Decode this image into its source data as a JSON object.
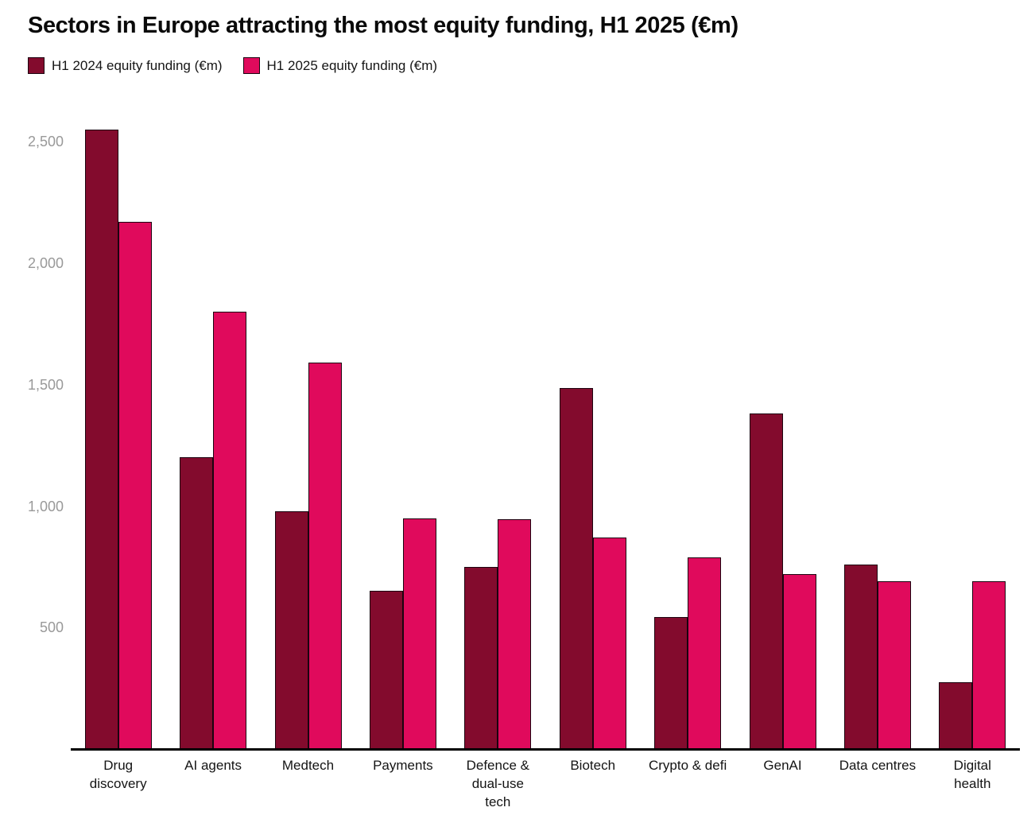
{
  "title": "Sectors in Europe attracting the most equity funding, H1 2025 (€m)",
  "chart_data": {
    "type": "bar",
    "title": "Sectors in Europe attracting the most equity funding, H1 2025 (€m)",
    "xlabel": "",
    "ylabel": "",
    "unit": "€m",
    "grid": false,
    "legend_position": "top-left",
    "ylim": [
      0,
      2600
    ],
    "yticks": [
      {
        "value": 500,
        "label": "500"
      },
      {
        "value": 1000,
        "label": "1,000"
      },
      {
        "value": 1500,
        "label": "1,500"
      },
      {
        "value": 2000,
        "label": "2,000"
      },
      {
        "value": 2500,
        "label": "2,500"
      }
    ],
    "categories": [
      "Drug discovery",
      "AI agents",
      "Medtech",
      "Payments",
      "Defence & dual-use tech",
      "Biotech",
      "Crypto & defi",
      "GenAI",
      "Data centres",
      "Digital health"
    ],
    "category_label_lines": [
      [
        "Drug",
        "discovery"
      ],
      [
        "AI agents"
      ],
      [
        "Medtech"
      ],
      [
        "Payments"
      ],
      [
        "Defence &",
        "dual-use",
        "tech"
      ],
      [
        "Biotech"
      ],
      [
        "Crypto & defi"
      ],
      [
        "GenAI"
      ],
      [
        "Data centres"
      ],
      [
        "Digital",
        "health"
      ]
    ],
    "series": [
      {
        "key": "h1-2024",
        "name": "H1 2024 equity funding (€m)",
        "color": "#830B2D",
        "values": [
          2550,
          1200,
          980,
          650,
          750,
          1485,
          545,
          1380,
          760,
          275
        ]
      },
      {
        "key": "h1-2025",
        "name": "H1 2025 equity funding (€m)",
        "color": "#E00A5C",
        "values": [
          2170,
          1800,
          1590,
          950,
          945,
          870,
          790,
          720,
          690,
          690
        ]
      }
    ],
    "colors": {
      "background": "#ffffff",
      "title": "#0a0a0a",
      "axis_line": "#000000",
      "tick_label": "#999999",
      "category_label": "#141414",
      "bar_outline": "#1c0410"
    }
  }
}
